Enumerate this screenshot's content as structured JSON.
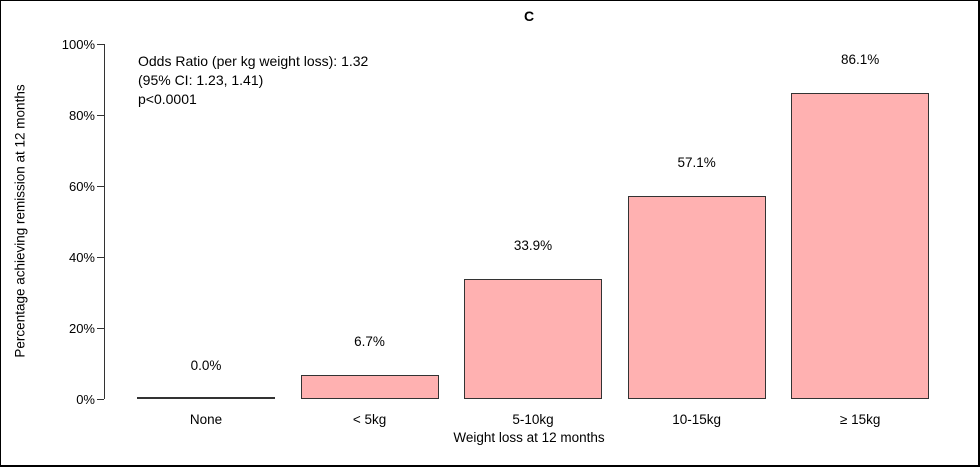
{
  "figure": {
    "panel_label": "C"
  },
  "chart_data": {
    "type": "bar",
    "title": "C",
    "categories": [
      "None",
      "< 5kg",
      "5-10kg",
      "10-15kg",
      "≥ 15kg"
    ],
    "values": [
      0.0,
      6.7,
      33.9,
      57.1,
      86.1
    ],
    "value_labels": [
      "0.0%",
      "6.7%",
      "33.9%",
      "57.1%",
      "86.1%"
    ],
    "xlabel": "Weight loss at 12 months",
    "ylabel": "Percentage achieving remission at 12 months",
    "ylim": [
      0,
      100
    ],
    "yticks": [
      0,
      20,
      40,
      60,
      80,
      100
    ],
    "ytick_labels": [
      "0%",
      "20%",
      "40%",
      "60%",
      "80%",
      "100%"
    ],
    "grid": false,
    "legend": "none",
    "bar_fill": "#ffb1b1",
    "bar_border": "#333333",
    "annotation": [
      "Odds Ratio (per kg weight loss): 1.32",
      "(95% CI: 1.23, 1.41)",
      "p<0.0001"
    ]
  }
}
